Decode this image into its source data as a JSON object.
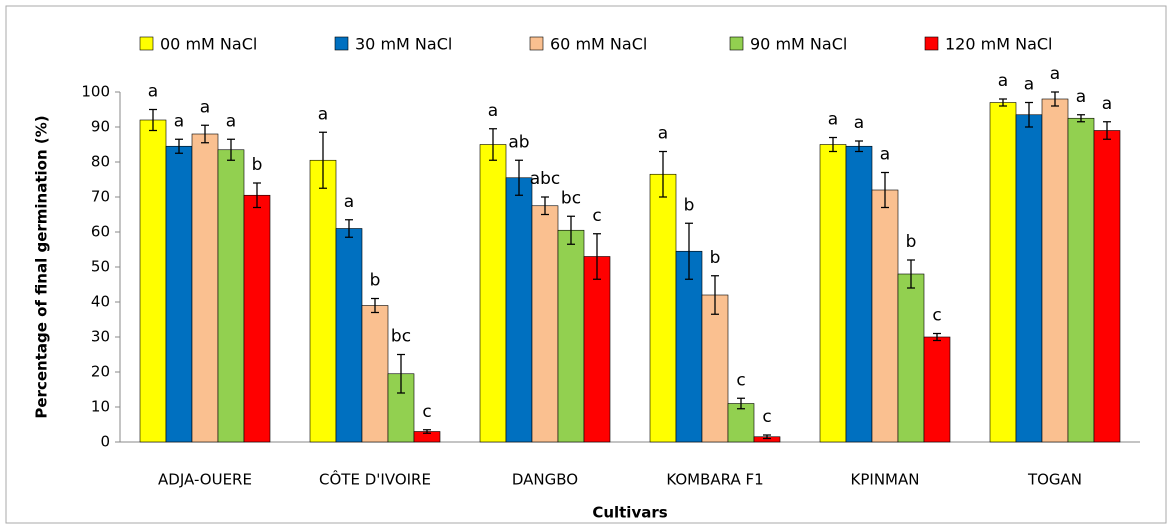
{
  "chart_data": {
    "type": "bar",
    "x_label": "Cultivars",
    "y_label": "Percentage of final germination (%)",
    "categories": [
      "ADJA-OUERE",
      "CÔTE D'IVOIRE",
      "DANGBO",
      "KOMBARA F1",
      "KPINMAN",
      "TOGAN"
    ],
    "ylim": [
      0,
      100
    ],
    "yticks": [
      0,
      10,
      20,
      30,
      40,
      50,
      60,
      70,
      80,
      90,
      100
    ],
    "grid": false,
    "legend": "top",
    "series": [
      {
        "name": "00 mM NaCl",
        "color": "#ffff00",
        "values": [
          92,
          80.5,
          85,
          76.5,
          85,
          97
        ],
        "errors": [
          3,
          8,
          4.5,
          6.5,
          2,
          1
        ],
        "letters": [
          "a",
          "a",
          "a",
          "a",
          "a",
          "a"
        ]
      },
      {
        "name": "30 mM NaCl",
        "color": "#0070c0",
        "values": [
          84.5,
          61,
          75.5,
          54.5,
          84.5,
          93.5
        ],
        "errors": [
          2,
          2.5,
          5,
          8,
          1.5,
          3.5
        ],
        "letters": [
          "a",
          "a",
          "ab",
          "b",
          "a",
          "a"
        ]
      },
      {
        "name": "60 mM NaCl",
        "color": "#fac090",
        "values": [
          88,
          39,
          67.5,
          42,
          72,
          98
        ],
        "errors": [
          2.5,
          2,
          2.5,
          5.5,
          5,
          2
        ],
        "letters": [
          "a",
          "b",
          "abc",
          "b",
          "a",
          "a"
        ]
      },
      {
        "name": "90 mM NaCl",
        "color": "#92d050",
        "values": [
          83.5,
          19.5,
          60.5,
          11,
          48,
          92.5
        ],
        "errors": [
          3,
          5.5,
          4,
          1.5,
          4,
          1
        ],
        "letters": [
          "a",
          "bc",
          "bc",
          "c",
          "b",
          "a"
        ]
      },
      {
        "name": "120 mM NaCl",
        "color": "#ff0000",
        "values": [
          70.5,
          3,
          53,
          1.5,
          30,
          89
        ],
        "errors": [
          3.5,
          0.5,
          6.5,
          0.5,
          1,
          2.5
        ],
        "letters": [
          "b",
          "c",
          "c",
          "c",
          "c",
          "a"
        ]
      }
    ]
  }
}
